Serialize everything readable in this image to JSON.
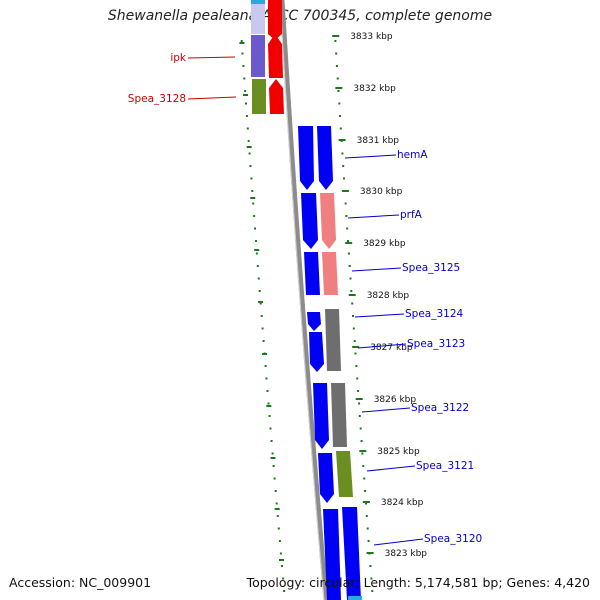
{
  "title": "Shewanella pealeana ATCC 700345, complete genome",
  "footer": {
    "accession": "Accession: NC_009901",
    "summary": "Topology: circular; Length: 5,174,581 bp; Genes: 4,420"
  },
  "colors": {
    "backbone": "#8c8c8c",
    "scale_ticks": "#1a7a1a",
    "cds_forward": "#0000f5",
    "cds_reverse": "#0000f5",
    "rna_red": "#f00000",
    "pink": "#f08080",
    "gray": "#6e6e6e",
    "olive": "#6b8e23",
    "purple": "#6a5acd",
    "label_blue": "#0000cc",
    "label_red": "#cc0000"
  },
  "ticks": [
    {
      "label": "3833 kbp"
    },
    {
      "label": "3832 kbp"
    },
    {
      "label": "3831 kbp"
    },
    {
      "label": "3830 kbp"
    },
    {
      "label": "3829 kbp"
    },
    {
      "label": "3828 kbp"
    },
    {
      "label": "3827 kbp"
    },
    {
      "label": "3826 kbp"
    },
    {
      "label": "3825 kbp"
    },
    {
      "label": "3824 kbp"
    },
    {
      "label": "3823 kbp"
    }
  ],
  "genes": [
    {
      "name": "ipk",
      "color": "red"
    },
    {
      "name": "Spea_3128",
      "color": "red"
    },
    {
      "name": "hemA",
      "color": "blue"
    },
    {
      "name": "prfA",
      "color": "blue"
    },
    {
      "name": "Spea_3125",
      "color": "blue"
    },
    {
      "name": "Spea_3124",
      "color": "blue"
    },
    {
      "name": "Spea_3123",
      "color": "blue"
    },
    {
      "name": "Spea_3122",
      "color": "blue"
    },
    {
      "name": "Spea_3121",
      "color": "blue"
    },
    {
      "name": "Spea_3120",
      "color": "blue"
    }
  ]
}
